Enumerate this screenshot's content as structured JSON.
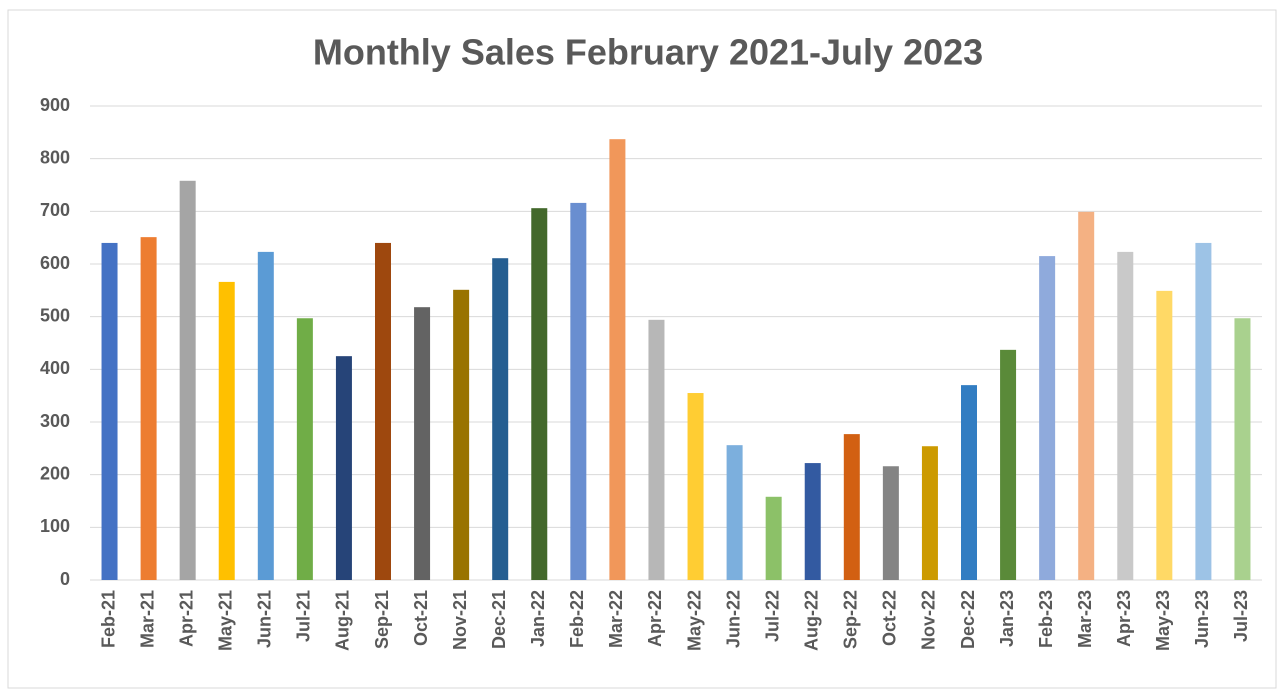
{
  "chart_data": {
    "type": "bar",
    "title": "Monthly Sales February 2021-July 2023",
    "categories": [
      "Feb-21",
      "Mar-21",
      "Apr-21",
      "May-21",
      "Jun-21",
      "Jul-21",
      "Aug-21",
      "Sep-21",
      "Oct-21",
      "Nov-21",
      "Dec-21",
      "Jan-22",
      "Feb-22",
      "Mar-22",
      "Apr-22",
      "May-22",
      "Jun-22",
      "Jul-22",
      "Aug-22",
      "Sep-22",
      "Oct-22",
      "Nov-22",
      "Dec-22",
      "Jan-23",
      "Feb-23",
      "Mar-23",
      "Apr-23",
      "May-23",
      "Jun-23",
      "Jul-23"
    ],
    "values": [
      640,
      651,
      758,
      566,
      623,
      497,
      425,
      640,
      518,
      551,
      611,
      706,
      716,
      837,
      494,
      355,
      256,
      158,
      222,
      277,
      216,
      254,
      370,
      437,
      615,
      699,
      623,
      549,
      640,
      497
    ],
    "colors": [
      "#4472c4",
      "#ed7d31",
      "#a5a5a5",
      "#ffc000",
      "#5b9bd5",
      "#70ad47",
      "#264478",
      "#9e480e",
      "#636363",
      "#997300",
      "#255e91",
      "#43682b",
      "#698ed0",
      "#f1975a",
      "#b7b7b7",
      "#ffcd33",
      "#7cafdd",
      "#8cc168",
      "#335aa1",
      "#d26012",
      "#848484",
      "#cc9a00",
      "#327dc2",
      "#5a8a39",
      "#8faadc",
      "#f4b183",
      "#c9c9c9",
      "#ffd966",
      "#9dc3e6",
      "#a9d18e"
    ],
    "ylim": [
      0,
      900
    ],
    "yticks": [
      0,
      100,
      200,
      300,
      400,
      500,
      600,
      700,
      800,
      900
    ],
    "grid": true
  }
}
